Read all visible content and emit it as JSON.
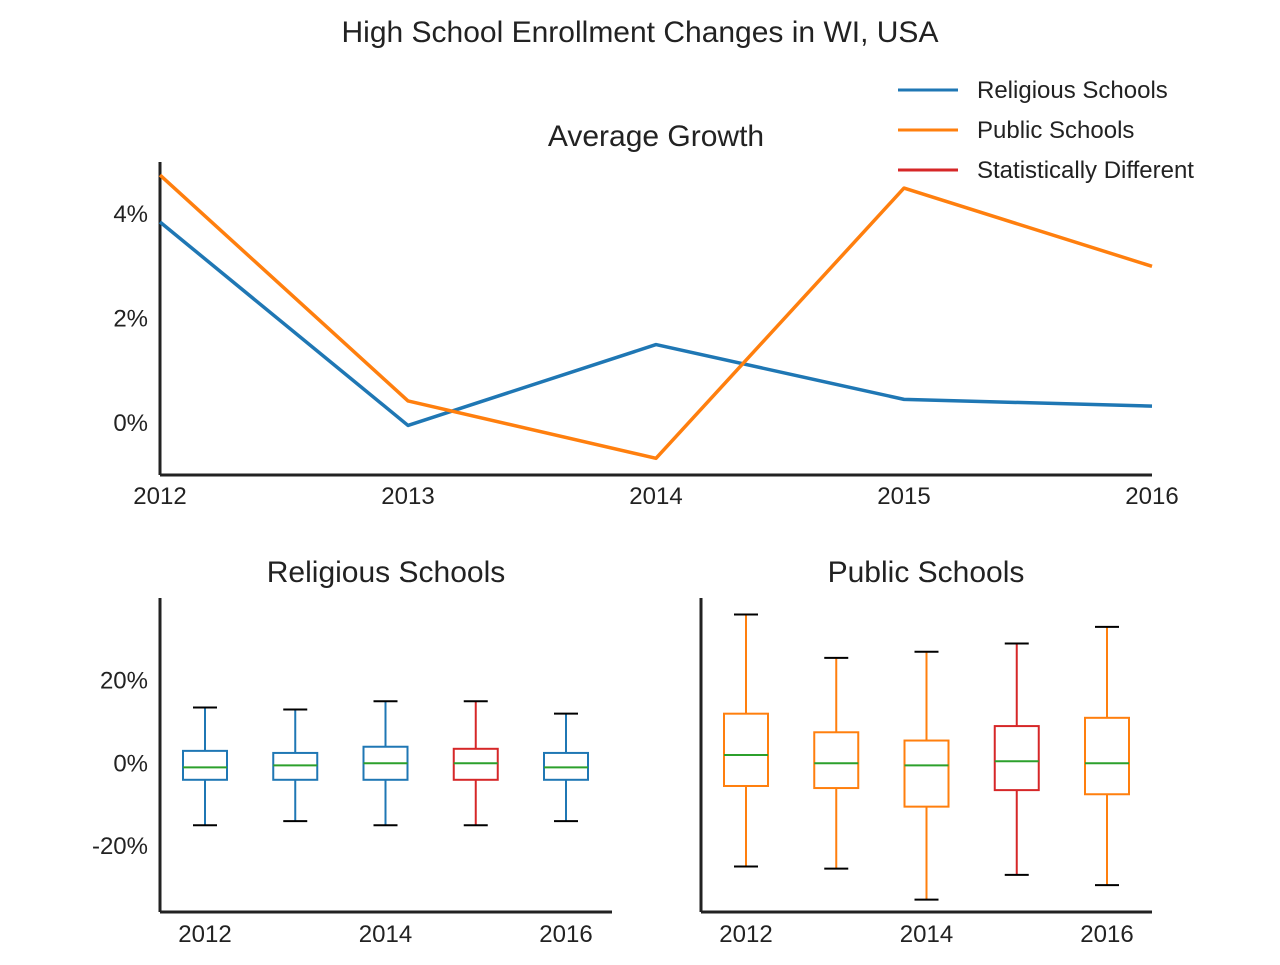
{
  "title": "High School Enrollment Changes in WI, USA",
  "colors": {
    "religious": "#1f77b4",
    "public": "#ff7f0e",
    "different": "#d62728",
    "median": "#2ca02c",
    "whisker_cap": "#000000",
    "axis": "#222222"
  },
  "legend": {
    "placement": "top-right",
    "items": [
      {
        "label": "Religious Schools",
        "color": "#1f77b4"
      },
      {
        "label": "Public Schools",
        "color": "#ff7f0e"
      },
      {
        "label": "Statistically Different",
        "color": "#d62728"
      }
    ]
  },
  "chart_data": [
    {
      "type": "line",
      "title": "Average Growth",
      "x": [
        2012,
        2013,
        2014,
        2015,
        2016
      ],
      "x_tick_labels": [
        "2012",
        "2013",
        "2014",
        "2015",
        "2016"
      ],
      "y_tick_values": [
        0,
        2,
        4
      ],
      "y_tick_labels": [
        "0%",
        "2%",
        "4%"
      ],
      "ylim": [
        -1.0,
        5.0
      ],
      "grid": false,
      "series": [
        {
          "name": "Religious Schools",
          "key": "religious",
          "values": [
            3.85,
            -0.05,
            1.5,
            0.45,
            0.32
          ]
        },
        {
          "name": "Public Schools",
          "key": "public",
          "values": [
            4.75,
            0.42,
            -0.68,
            4.5,
            3.0
          ]
        }
      ]
    },
    {
      "type": "box",
      "title": "Religious Schools",
      "x": [
        2012,
        2013,
        2014,
        2015,
        2016
      ],
      "x_tick_labels": [
        "2012",
        "",
        "2014",
        "",
        "2016"
      ],
      "y_tick_values": [
        -20,
        0,
        20
      ],
      "y_tick_labels": [
        "-20%",
        "0%",
        "20%"
      ],
      "ylim": [
        -36,
        40
      ],
      "grid": false,
      "boxes": [
        {
          "x": 2012,
          "whisker_low": -15.0,
          "q1": -4.0,
          "median": -1.0,
          "q3": 3.0,
          "whisker_high": 13.5,
          "statistically_different": false
        },
        {
          "x": 2013,
          "whisker_low": -14.0,
          "q1": -4.0,
          "median": -0.5,
          "q3": 2.5,
          "whisker_high": 13.0,
          "statistically_different": false
        },
        {
          "x": 2014,
          "whisker_low": -15.0,
          "q1": -4.0,
          "median": 0.0,
          "q3": 4.0,
          "whisker_high": 15.0,
          "statistically_different": false
        },
        {
          "x": 2015,
          "whisker_low": -15.0,
          "q1": -4.0,
          "median": 0.0,
          "q3": 3.5,
          "whisker_high": 15.0,
          "statistically_different": true
        },
        {
          "x": 2016,
          "whisker_low": -14.0,
          "q1": -4.0,
          "median": -1.0,
          "q3": 2.5,
          "whisker_high": 12.0,
          "statistically_different": false
        }
      ]
    },
    {
      "type": "box",
      "title": "Public Schools",
      "x": [
        2012,
        2013,
        2014,
        2015,
        2016
      ],
      "x_tick_labels": [
        "2012",
        "",
        "2014",
        "",
        "2016"
      ],
      "y_tick_values": [
        -20,
        0,
        20
      ],
      "y_tick_labels": [
        "",
        "",
        ""
      ],
      "ylim": [
        -36,
        40
      ],
      "grid": false,
      "boxes": [
        {
          "x": 2012,
          "whisker_low": -25.0,
          "q1": -5.5,
          "median": 2.0,
          "q3": 12.0,
          "whisker_high": 36.0,
          "statistically_different": false
        },
        {
          "x": 2013,
          "whisker_low": -25.5,
          "q1": -6.0,
          "median": 0.0,
          "q3": 7.5,
          "whisker_high": 25.5,
          "statistically_different": false
        },
        {
          "x": 2014,
          "whisker_low": -33.0,
          "q1": -10.5,
          "median": -0.5,
          "q3": 5.5,
          "whisker_high": 27.0,
          "statistically_different": false
        },
        {
          "x": 2015,
          "whisker_low": -27.0,
          "q1": -6.5,
          "median": 0.5,
          "q3": 9.0,
          "whisker_high": 29.0,
          "statistically_different": true
        },
        {
          "x": 2016,
          "whisker_low": -29.5,
          "q1": -7.5,
          "median": 0.0,
          "q3": 11.0,
          "whisker_high": 33.0,
          "statistically_different": false
        }
      ]
    }
  ]
}
